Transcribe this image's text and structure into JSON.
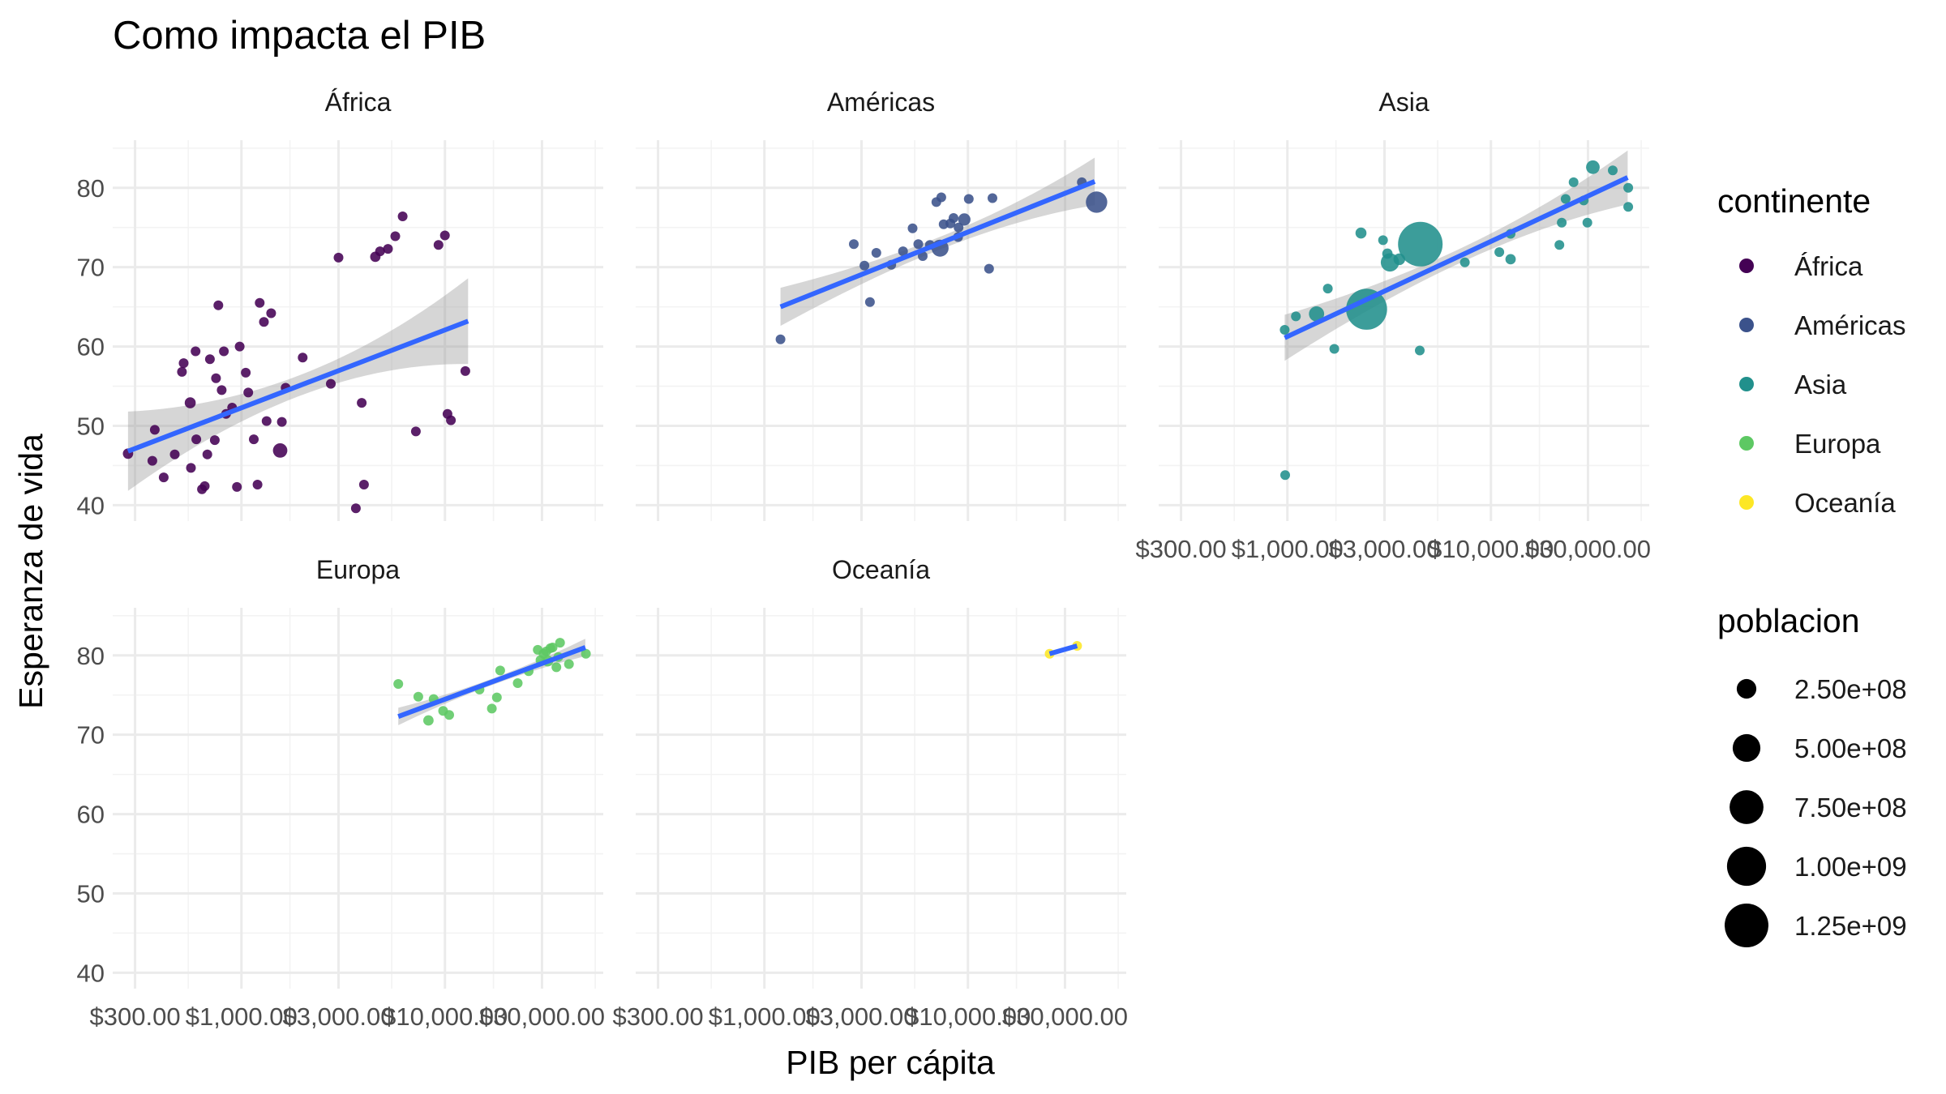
{
  "chart_data": {
    "type": "scatter",
    "title": "Como impacta el PIB",
    "xlabel": "PIB per cápita",
    "ylabel": "Esperanza de vida",
    "x_scale": "log10",
    "xlim": [
      233,
      60000
    ],
    "ylim": [
      38,
      86
    ],
    "x_ticks": [
      300,
      1000,
      3000,
      10000,
      30000
    ],
    "x_tick_labels": [
      "$300.00",
      "$1,000.00",
      "$3,000.00",
      "$10,000.00",
      "$30,000.00"
    ],
    "y_ticks": [
      40,
      50,
      60,
      70,
      80
    ],
    "y_tick_labels": [
      "40",
      "50",
      "60",
      "70",
      "80"
    ],
    "grid": true,
    "smooth": "linear fit with confidence band per panel",
    "colors": {
      "África": "#440154",
      "Américas": "#3B528B",
      "Asia": "#21908C",
      "Europa": "#5DC863",
      "Oceanía": "#FDE725",
      "fit": "#3366FF",
      "band": "#999999"
    },
    "legend": {
      "color_title": "continente",
      "color_entries": [
        "África",
        "Américas",
        "Asia",
        "Europa",
        "Oceanía"
      ],
      "size_title": "poblacion",
      "size_entries": [
        {
          "label": "2.50e+08",
          "value": 250000000
        },
        {
          "label": "5.00e+08",
          "value": 500000000
        },
        {
          "label": "7.50e+08",
          "value": 750000000
        },
        {
          "label": "1.00e+09",
          "value": 1000000000
        },
        {
          "label": "1.25e+09",
          "value": 1250000000
        }
      ],
      "placement": "right"
    },
    "panels": [
      {
        "name": "África",
        "fit": {
          "x": [
            277,
            13000
          ],
          "y": [
            46.8,
            63.2
          ],
          "band_half": [
            5.0,
            5.4
          ],
          "band_mid": 1.3
        },
        "points": [
          {
            "x": 277,
            "y": 46.5,
            "pop": 70000000
          },
          {
            "x": 365,
            "y": 45.6,
            "pop": 10000000
          },
          {
            "x": 375,
            "y": 49.5,
            "pop": 10000000
          },
          {
            "x": 415,
            "y": 43.5,
            "pop": 15000000
          },
          {
            "x": 470,
            "y": 46.4,
            "pop": 10000000
          },
          {
            "x": 510,
            "y": 56.8,
            "pop": 15000000
          },
          {
            "x": 520,
            "y": 57.9,
            "pop": 10000000
          },
          {
            "x": 560,
            "y": 52.9,
            "pop": 80000000
          },
          {
            "x": 565,
            "y": 44.7,
            "pop": 15000000
          },
          {
            "x": 595,
            "y": 59.4,
            "pop": 10000000
          },
          {
            "x": 600,
            "y": 48.3,
            "pop": 30000000
          },
          {
            "x": 640,
            "y": 42.0,
            "pop": 40000000
          },
          {
            "x": 660,
            "y": 42.4,
            "pop": 30000000
          },
          {
            "x": 680,
            "y": 46.4,
            "pop": 15000000
          },
          {
            "x": 700,
            "y": 58.4,
            "pop": 15000000
          },
          {
            "x": 740,
            "y": 48.2,
            "pop": 30000000
          },
          {
            "x": 750,
            "y": 56.0,
            "pop": 20000000
          },
          {
            "x": 770,
            "y": 65.2,
            "pop": 5000000
          },
          {
            "x": 800,
            "y": 54.5,
            "pop": 20000000
          },
          {
            "x": 820,
            "y": 59.4,
            "pop": 40000000
          },
          {
            "x": 840,
            "y": 51.5,
            "pop": 40000000
          },
          {
            "x": 900,
            "y": 52.3,
            "pop": 30000000
          },
          {
            "x": 950,
            "y": 42.3,
            "pop": 25000000
          },
          {
            "x": 980,
            "y": 60.0,
            "pop": 40000000
          },
          {
            "x": 1050,
            "y": 56.7,
            "pop": 15000000
          },
          {
            "x": 1080,
            "y": 54.2,
            "pop": 45000000
          },
          {
            "x": 1150,
            "y": 48.3,
            "pop": 40000000
          },
          {
            "x": 1200,
            "y": 42.6,
            "pop": 10000000
          },
          {
            "x": 1230,
            "y": 65.5,
            "pop": 5000000
          },
          {
            "x": 1290,
            "y": 63.1,
            "pop": 20000000
          },
          {
            "x": 1330,
            "y": 50.6,
            "pop": 15000000
          },
          {
            "x": 1400,
            "y": 64.2,
            "pop": 20000000
          },
          {
            "x": 1550,
            "y": 46.9,
            "pop": 135000000
          },
          {
            "x": 1580,
            "y": 50.5,
            "pop": 30000000
          },
          {
            "x": 1650,
            "y": 54.8,
            "pop": 10000000
          },
          {
            "x": 2000,
            "y": 58.6,
            "pop": 50000000
          },
          {
            "x": 2750,
            "y": 55.3,
            "pop": 10000000
          },
          {
            "x": 3000,
            "y": 71.2,
            "pop": 40000000
          },
          {
            "x": 3650,
            "y": 39.6,
            "pop": 10000000
          },
          {
            "x": 3900,
            "y": 52.9,
            "pop": 10000000
          },
          {
            "x": 4000,
            "y": 42.6,
            "pop": 20000000
          },
          {
            "x": 4550,
            "y": 71.3,
            "pop": 70000000
          },
          {
            "x": 4800,
            "y": 72.0,
            "pop": 40000000
          },
          {
            "x": 5250,
            "y": 72.3,
            "pop": 15000000
          },
          {
            "x": 5700,
            "y": 73.9,
            "pop": 25000000
          },
          {
            "x": 6200,
            "y": 76.4,
            "pop": 10000000
          },
          {
            "x": 7200,
            "y": 49.3,
            "pop": 40000000
          },
          {
            "x": 9300,
            "y": 72.8,
            "pop": 10000000
          },
          {
            "x": 10000,
            "y": 74.0,
            "pop": 25000000
          },
          {
            "x": 10300,
            "y": 51.5,
            "pop": 10000000
          },
          {
            "x": 10700,
            "y": 50.7,
            "pop": 10000000
          },
          {
            "x": 12600,
            "y": 56.9,
            "pop": 10000000
          }
        ]
      },
      {
        "name": "Américas",
        "fit": {
          "x": [
            1200,
            42000
          ],
          "y": [
            65.0,
            80.8
          ],
          "band_half": [
            2.4,
            3.0
          ],
          "band_mid": 0.8
        },
        "points": [
          {
            "x": 1200,
            "y": 60.9,
            "pop": 10000000
          },
          {
            "x": 2750,
            "y": 72.9,
            "pop": 10000000
          },
          {
            "x": 3100,
            "y": 70.2,
            "pop": 10000000
          },
          {
            "x": 3300,
            "y": 65.6,
            "pop": 10000000
          },
          {
            "x": 3550,
            "y": 71.8,
            "pop": 20000000
          },
          {
            "x": 4200,
            "y": 70.3,
            "pop": 20000000
          },
          {
            "x": 4800,
            "y": 72.0,
            "pop": 20000000
          },
          {
            "x": 5350,
            "y": 74.9,
            "pop": 20000000
          },
          {
            "x": 5700,
            "y": 72.9,
            "pop": 20000000
          },
          {
            "x": 6000,
            "y": 71.4,
            "pop": 50000000
          },
          {
            "x": 6500,
            "y": 72.8,
            "pop": 40000000
          },
          {
            "x": 7000,
            "y": 78.2,
            "pop": 15000000
          },
          {
            "x": 7300,
            "y": 72.4,
            "pop": 190000000
          },
          {
            "x": 7400,
            "y": 78.8,
            "pop": 10000000
          },
          {
            "x": 7600,
            "y": 75.4,
            "pop": 10000000
          },
          {
            "x": 8200,
            "y": 75.5,
            "pop": 20000000
          },
          {
            "x": 8500,
            "y": 76.2,
            "pop": 40000000
          },
          {
            "x": 8950,
            "y": 73.8,
            "pop": 20000000
          },
          {
            "x": 9000,
            "y": 75.0,
            "pop": 15000000
          },
          {
            "x": 9600,
            "y": 76.0,
            "pop": 100000000
          },
          {
            "x": 10100,
            "y": 78.6,
            "pop": 25000000
          },
          {
            "x": 12700,
            "y": 69.8,
            "pop": 10000000
          },
          {
            "x": 13200,
            "y": 78.7,
            "pop": 10000000
          },
          {
            "x": 36300,
            "y": 80.7,
            "pop": 30000000
          },
          {
            "x": 42900,
            "y": 78.2,
            "pop": 300000000
          }
        ]
      },
      {
        "name": "Asia",
        "fit": {
          "x": [
            970,
            47000
          ],
          "y": [
            61.1,
            81.3
          ],
          "band_half": [
            2.9,
            3.4
          ],
          "band_mid": 0.9
        },
        "points": [
          {
            "x": 975,
            "y": 43.8,
            "pop": 30000000
          },
          {
            "x": 970,
            "y": 62.1,
            "pop": 50000000
          },
          {
            "x": 1100,
            "y": 63.8,
            "pop": 40000000
          },
          {
            "x": 1390,
            "y": 64.1,
            "pop": 150000000
          },
          {
            "x": 1580,
            "y": 67.3,
            "pop": 40000000
          },
          {
            "x": 1700,
            "y": 59.7,
            "pop": 30000000
          },
          {
            "x": 2300,
            "y": 74.3,
            "pop": 80000000
          },
          {
            "x": 2450,
            "y": 64.7,
            "pop": 1100000000
          },
          {
            "x": 2950,
            "y": 73.4,
            "pop": 10000000
          },
          {
            "x": 3100,
            "y": 71.7,
            "pop": 70000000
          },
          {
            "x": 3190,
            "y": 70.6,
            "pop": 220000000
          },
          {
            "x": 3550,
            "y": 71.0,
            "pop": 90000000
          },
          {
            "x": 4500,
            "y": 72.9,
            "pop": 1300000000
          },
          {
            "x": 4470,
            "y": 59.5,
            "pop": 40000000
          },
          {
            "x": 7450,
            "y": 70.6,
            "pop": 60000000
          },
          {
            "x": 11000,
            "y": 71.9,
            "pop": 25000000
          },
          {
            "x": 12500,
            "y": 71.0,
            "pop": 70000000
          },
          {
            "x": 12500,
            "y": 74.2,
            "pop": 30000000
          },
          {
            "x": 21700,
            "y": 72.8,
            "pop": 40000000
          },
          {
            "x": 22300,
            "y": 75.6,
            "pop": 10000000
          },
          {
            "x": 23300,
            "y": 78.6,
            "pop": 50000000
          },
          {
            "x": 25500,
            "y": 80.7,
            "pop": 15000000
          },
          {
            "x": 28600,
            "y": 78.4,
            "pop": 25000000
          },
          {
            "x": 29800,
            "y": 75.6,
            "pop": 10000000
          },
          {
            "x": 31700,
            "y": 82.6,
            "pop": 120000000
          },
          {
            "x": 39700,
            "y": 82.2,
            "pop": 15000000
          },
          {
            "x": 47300,
            "y": 80.0,
            "pop": 10000000
          },
          {
            "x": 47300,
            "y": 77.6,
            "pop": 10000000
          }
        ]
      },
      {
        "name": "Europa",
        "fit": {
          "x": [
            5900,
            49000
          ],
          "y": [
            72.3,
            81.0
          ],
          "band_half": [
            1.1,
            1.1
          ],
          "band_mid": 0.4
        },
        "points": [
          {
            "x": 5900,
            "y": 76.4,
            "pop": 10000000
          },
          {
            "x": 7400,
            "y": 74.8,
            "pop": 10000000
          },
          {
            "x": 8300,
            "y": 71.8,
            "pop": 70000000
          },
          {
            "x": 8800,
            "y": 74.5,
            "pop": 10000000
          },
          {
            "x": 9800,
            "y": 73.0,
            "pop": 10000000
          },
          {
            "x": 10500,
            "y": 72.5,
            "pop": 40000000
          },
          {
            "x": 14800,
            "y": 75.7,
            "pop": 40000000
          },
          {
            "x": 17000,
            "y": 73.3,
            "pop": 10000000
          },
          {
            "x": 18000,
            "y": 74.7,
            "pop": 10000000
          },
          {
            "x": 18700,
            "y": 78.1,
            "pop": 10000000
          },
          {
            "x": 22800,
            "y": 76.5,
            "pop": 10000000
          },
          {
            "x": 25800,
            "y": 78.0,
            "pop": 10000000
          },
          {
            "x": 28600,
            "y": 80.7,
            "pop": 40000000
          },
          {
            "x": 29500,
            "y": 79.4,
            "pop": 10000000
          },
          {
            "x": 30500,
            "y": 80.2,
            "pop": 60000000
          },
          {
            "x": 31500,
            "y": 80.5,
            "pop": 20000000
          },
          {
            "x": 32000,
            "y": 79.3,
            "pop": 80000000
          },
          {
            "x": 33000,
            "y": 80.9,
            "pop": 10000000
          },
          {
            "x": 33800,
            "y": 81.0,
            "pop": 60000000
          },
          {
            "x": 35300,
            "y": 78.5,
            "pop": 10000000
          },
          {
            "x": 36100,
            "y": 79.8,
            "pop": 10000000
          },
          {
            "x": 36800,
            "y": 81.6,
            "pop": 40000000
          },
          {
            "x": 40700,
            "y": 78.9,
            "pop": 10000000
          },
          {
            "x": 49300,
            "y": 80.2,
            "pop": 10000000
          }
        ]
      },
      {
        "name": "Oceanía",
        "fit": {
          "x": [
            25200,
            34400
          ],
          "y": [
            80.2,
            81.2
          ],
          "band_half": [
            0.2,
            0.2
          ],
          "band_mid": 0.0
        },
        "points": [
          {
            "x": 25200,
            "y": 80.2,
            "pop": 5000000
          },
          {
            "x": 34400,
            "y": 81.2,
            "pop": 20000000
          }
        ]
      }
    ]
  }
}
